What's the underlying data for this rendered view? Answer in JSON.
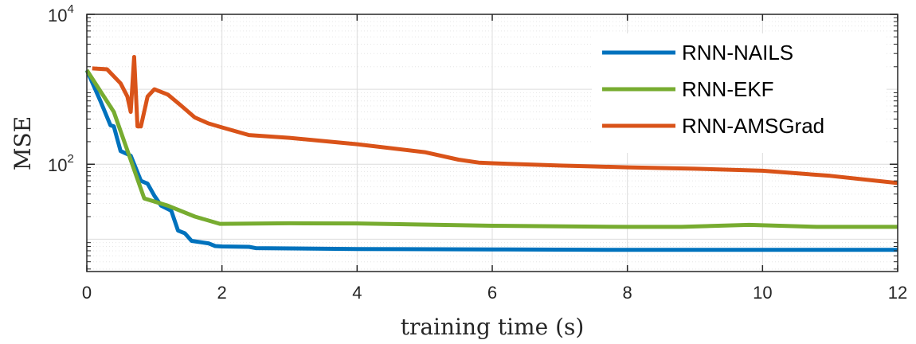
{
  "chart_data": {
    "type": "line",
    "xlabel": "training time (s)",
    "ylabel": "MSE",
    "y_scale": "log",
    "xlim": [
      0,
      12
    ],
    "ylim": [
      3.7,
      10000
    ],
    "grid": true,
    "minor_grid": true,
    "legend_position": "top-right",
    "x_ticks": [
      0,
      2,
      4,
      6,
      8,
      10,
      12
    ],
    "x_tick_labels": [
      "0",
      "2",
      "4",
      "6",
      "8",
      "10",
      "12"
    ],
    "y_ticks": [
      100,
      10000
    ],
    "y_tick_labels": [
      {
        "base": "10",
        "exp": "2"
      },
      {
        "base": "10",
        "exp": "4"
      }
    ],
    "series": [
      {
        "name": "RNN-NAILS",
        "color": "#0072BD",
        "points": [
          [
            0,
            1800
          ],
          [
            0.2,
            700
          ],
          [
            0.35,
            330
          ],
          [
            0.4,
            320
          ],
          [
            0.5,
            150
          ],
          [
            0.65,
            130
          ],
          [
            0.8,
            60
          ],
          [
            0.9,
            55
          ],
          [
            1.0,
            38
          ],
          [
            1.1,
            28
          ],
          [
            1.25,
            24
          ],
          [
            1.35,
            13
          ],
          [
            1.45,
            12
          ],
          [
            1.55,
            9.5
          ],
          [
            1.8,
            8.8
          ],
          [
            1.9,
            8.1
          ],
          [
            2.0,
            8.0
          ],
          [
            2.4,
            7.9
          ],
          [
            2.5,
            7.6
          ],
          [
            4.0,
            7.4
          ],
          [
            6.0,
            7.3
          ],
          [
            8.0,
            7.2
          ],
          [
            10.0,
            7.2
          ],
          [
            12.0,
            7.2
          ]
        ]
      },
      {
        "name": "RNN-EKF",
        "color": "#77AC30",
        "points": [
          [
            0,
            1800
          ],
          [
            0.4,
            500
          ],
          [
            0.85,
            35
          ],
          [
            1.2,
            28
          ],
          [
            1.6,
            20
          ],
          [
            1.97,
            16
          ],
          [
            3.0,
            16.3
          ],
          [
            4.0,
            16.2
          ],
          [
            6.0,
            15.1
          ],
          [
            8.0,
            14.6
          ],
          [
            8.8,
            14.6
          ],
          [
            9.8,
            15.5
          ],
          [
            10.8,
            14.6
          ],
          [
            12.0,
            14.6
          ]
        ]
      },
      {
        "name": "RNN-AMSGrad",
        "color": "#D95319",
        "points": [
          [
            0.08,
            1900
          ],
          [
            0.3,
            1850
          ],
          [
            0.5,
            1200
          ],
          [
            0.6,
            800
          ],
          [
            0.65,
            500
          ],
          [
            0.7,
            2700
          ],
          [
            0.75,
            320
          ],
          [
            0.8,
            320
          ],
          [
            0.9,
            800
          ],
          [
            1.0,
            1000
          ],
          [
            1.2,
            850
          ],
          [
            1.4,
            600
          ],
          [
            1.6,
            420
          ],
          [
            1.8,
            350
          ],
          [
            2.0,
            310
          ],
          [
            2.4,
            245
          ],
          [
            3.0,
            225
          ],
          [
            4.0,
            185
          ],
          [
            5.0,
            145
          ],
          [
            5.5,
            115
          ],
          [
            5.8,
            105
          ],
          [
            6.0,
            103
          ],
          [
            7.0,
            96
          ],
          [
            8.0,
            91
          ],
          [
            9.0,
            87
          ],
          [
            10.0,
            82
          ],
          [
            11.0,
            70
          ],
          [
            12.0,
            56
          ]
        ]
      }
    ]
  }
}
